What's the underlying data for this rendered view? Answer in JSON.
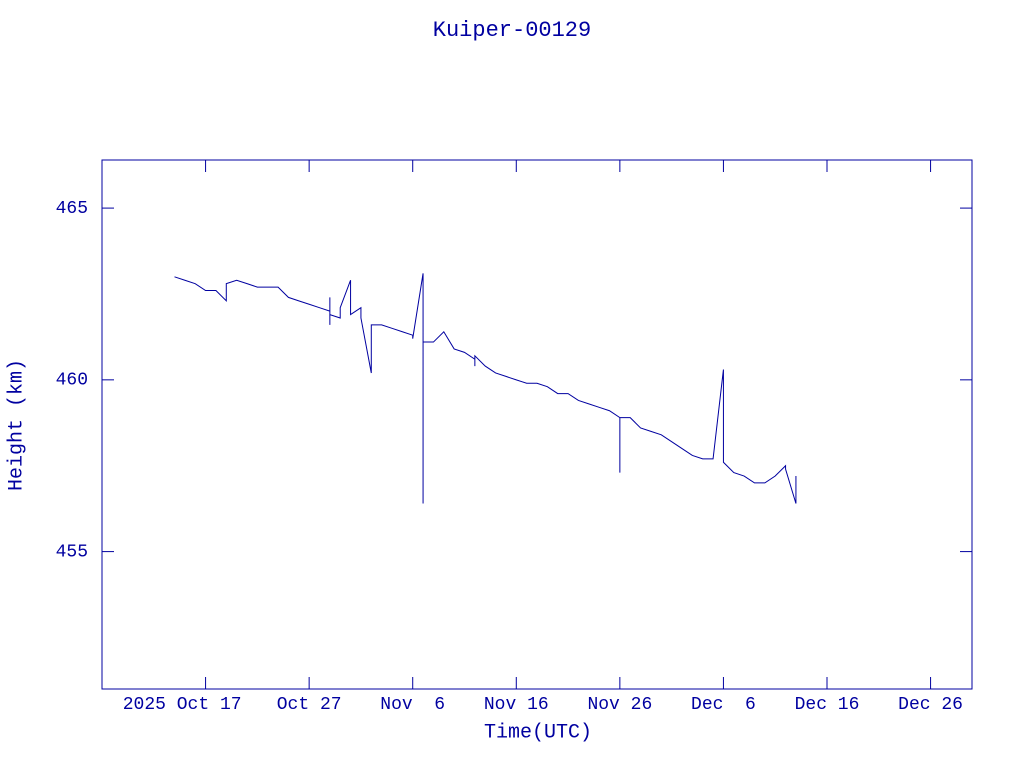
{
  "chart_data": {
    "type": "line",
    "title": "Kuiper-00129",
    "x_label": "Time(UTC)",
    "y_label": "Height (km)",
    "color": "#0000a0",
    "x": [
      "2025-10-14",
      "2025-10-15",
      "2025-10-16",
      "2025-10-17",
      "2025-10-18",
      "2025-10-19",
      "2025-10-19",
      "2025-10-20",
      "2025-10-21",
      "2025-10-22",
      "2025-10-23",
      "2025-10-24",
      "2025-10-25",
      "2025-10-26",
      "2025-10-27",
      "2025-10-28",
      "2025-10-29",
      "2025-10-29",
      "2025-10-29",
      "2025-10-29",
      "2025-10-30",
      "2025-10-30",
      "2025-10-31",
      "2025-10-31",
      "2025-11-01",
      "2025-11-01",
      "2025-11-02",
      "2025-11-02",
      "2025-11-03",
      "2025-11-04",
      "2025-11-05",
      "2025-11-06",
      "2025-11-06",
      "2025-11-07",
      "2025-11-07",
      "2025-11-07",
      "2025-11-07",
      "2025-11-08",
      "2025-11-09",
      "2025-11-10",
      "2025-11-11",
      "2025-11-12",
      "2025-11-12",
      "2025-11-12",
      "2025-11-13",
      "2025-11-14",
      "2025-11-15",
      "2025-11-16",
      "2025-11-17",
      "2025-11-18",
      "2025-11-19",
      "2025-11-20",
      "2025-11-21",
      "2025-11-22",
      "2025-11-23",
      "2025-11-24",
      "2025-11-25",
      "2025-11-26",
      "2025-11-26",
      "2025-11-26",
      "2025-11-27",
      "2025-11-28",
      "2025-11-29",
      "2025-11-30",
      "2025-12-01",
      "2025-12-02",
      "2025-12-03",
      "2025-12-04",
      "2025-12-05",
      "2025-12-06",
      "2025-12-06",
      "2025-12-07",
      "2025-12-08",
      "2025-12-09",
      "2025-12-10",
      "2025-12-11",
      "2025-12-12",
      "2025-12-12",
      "2025-12-13",
      "2025-12-13"
    ],
    "values": [
      463.0,
      462.9,
      462.8,
      462.6,
      462.6,
      462.3,
      462.8,
      462.9,
      462.8,
      462.7,
      462.7,
      462.7,
      462.4,
      462.3,
      462.2,
      462.1,
      462.0,
      461.6,
      462.4,
      461.9,
      461.8,
      462.1,
      462.9,
      461.9,
      462.1,
      461.8,
      460.2,
      461.6,
      461.6,
      461.5,
      461.4,
      461.3,
      461.2,
      463.1,
      459.1,
      456.4,
      461.1,
      461.1,
      461.4,
      460.9,
      460.8,
      460.6,
      460.4,
      460.7,
      460.4,
      460.2,
      460.1,
      460.0,
      459.9,
      459.9,
      459.8,
      459.6,
      459.6,
      459.4,
      459.3,
      459.2,
      459.1,
      458.9,
      457.3,
      458.9,
      458.9,
      458.6,
      458.5,
      458.4,
      458.2,
      458.0,
      457.8,
      457.7,
      457.7,
      460.3,
      457.6,
      457.3,
      457.2,
      457.0,
      457.0,
      457.2,
      457.5,
      457.4,
      456.4,
      457.2
    ],
    "xlim": [
      "2025-10-07",
      "2025-12-30"
    ],
    "xticks": [
      {
        "value": "2025-10-17",
        "label": "2025 Oct 17"
      },
      {
        "value": "2025-10-27",
        "label": "Oct 27"
      },
      {
        "value": "2025-11-06",
        "label": "Nov  6"
      },
      {
        "value": "2025-11-16",
        "label": "Nov 16"
      },
      {
        "value": "2025-11-26",
        "label": "Nov 26"
      },
      {
        "value": "2025-12-06",
        "label": "Dec  6"
      },
      {
        "value": "2025-12-16",
        "label": "Dec 16"
      },
      {
        "value": "2025-12-26",
        "label": "Dec 26"
      }
    ],
    "ylim": [
      451,
      466.4
    ],
    "yticks": [
      455,
      460,
      465
    ]
  }
}
